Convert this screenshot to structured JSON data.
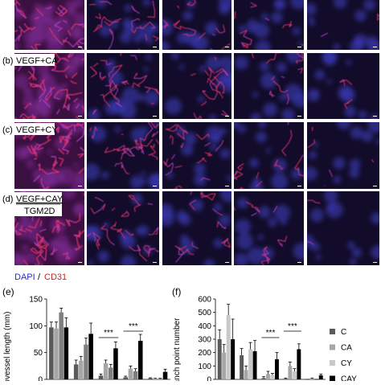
{
  "panels": {
    "b": {
      "letter": "(b)",
      "condition": "VEGF+CA"
    },
    "c": {
      "letter": "(c)",
      "condition": "VEGF+CY"
    },
    "d": {
      "letter": "(d)",
      "condition": "VEGF+CAY",
      "extra": "TGM2D"
    }
  },
  "stain_legend": {
    "dapi": "DAPI",
    "separator": "/",
    "cd31": "CD31"
  },
  "chart_data": [
    {
      "type": "bar",
      "label": "(e)",
      "y_label": "Microvessel length (mm)",
      "categories": [
        null,
        null,
        null,
        null,
        null
      ],
      "ylim": [
        0,
        150
      ],
      "yticks": [
        0,
        50,
        100,
        150
      ],
      "annotations": [
        "***",
        "***"
      ],
      "series": [
        {
          "color": "#5a5a5a",
          "values": [
            97,
            28,
            7,
            4,
            2
          ],
          "errors": [
            10,
            8,
            3,
            2,
            1
          ]
        },
        {
          "color": "#a6a6a6",
          "values": [
            95,
            35,
            30,
            20,
            1
          ],
          "errors": [
            12,
            8,
            6,
            5,
            1
          ]
        },
        {
          "color": "#7f7f7f",
          "values": [
            125,
            65,
            22,
            15,
            1
          ],
          "errors": [
            8,
            12,
            6,
            5,
            1
          ]
        },
        {
          "color": "#000000",
          "values": [
            97,
            85,
            58,
            72,
            14
          ],
          "errors": [
            18,
            20,
            12,
            12,
            5
          ]
        }
      ]
    },
    {
      "type": "bar",
      "label": "(f)",
      "y_label": "Branch point number",
      "categories": [
        null,
        null,
        null,
        null,
        null
      ],
      "ylim": [
        0,
        600
      ],
      "yticks": [
        0,
        100,
        200,
        300,
        400,
        500,
        600
      ],
      "annotations": [
        "***",
        "***"
      ],
      "series": [
        {
          "name": "C",
          "color": "#5a5a5a",
          "values": [
            300,
            180,
            10,
            5,
            0
          ],
          "errors": [
            70,
            50,
            10,
            5,
            0
          ]
        },
        {
          "name": "CA",
          "color": "#a6a6a6",
          "values": [
            200,
            70,
            40,
            100,
            5
          ],
          "errors": [
            60,
            30,
            20,
            30,
            5
          ]
        },
        {
          "name": "CY",
          "color": "#c8c8c8",
          "values": [
            480,
            225,
            30,
            60,
            0
          ],
          "errors": [
            80,
            50,
            15,
            20,
            0
          ]
        },
        {
          "name": "CAY",
          "color": "#000000",
          "values": [
            300,
            210,
            150,
            225,
            30
          ],
          "errors": [
            150,
            80,
            50,
            40,
            10
          ]
        }
      ]
    }
  ]
}
